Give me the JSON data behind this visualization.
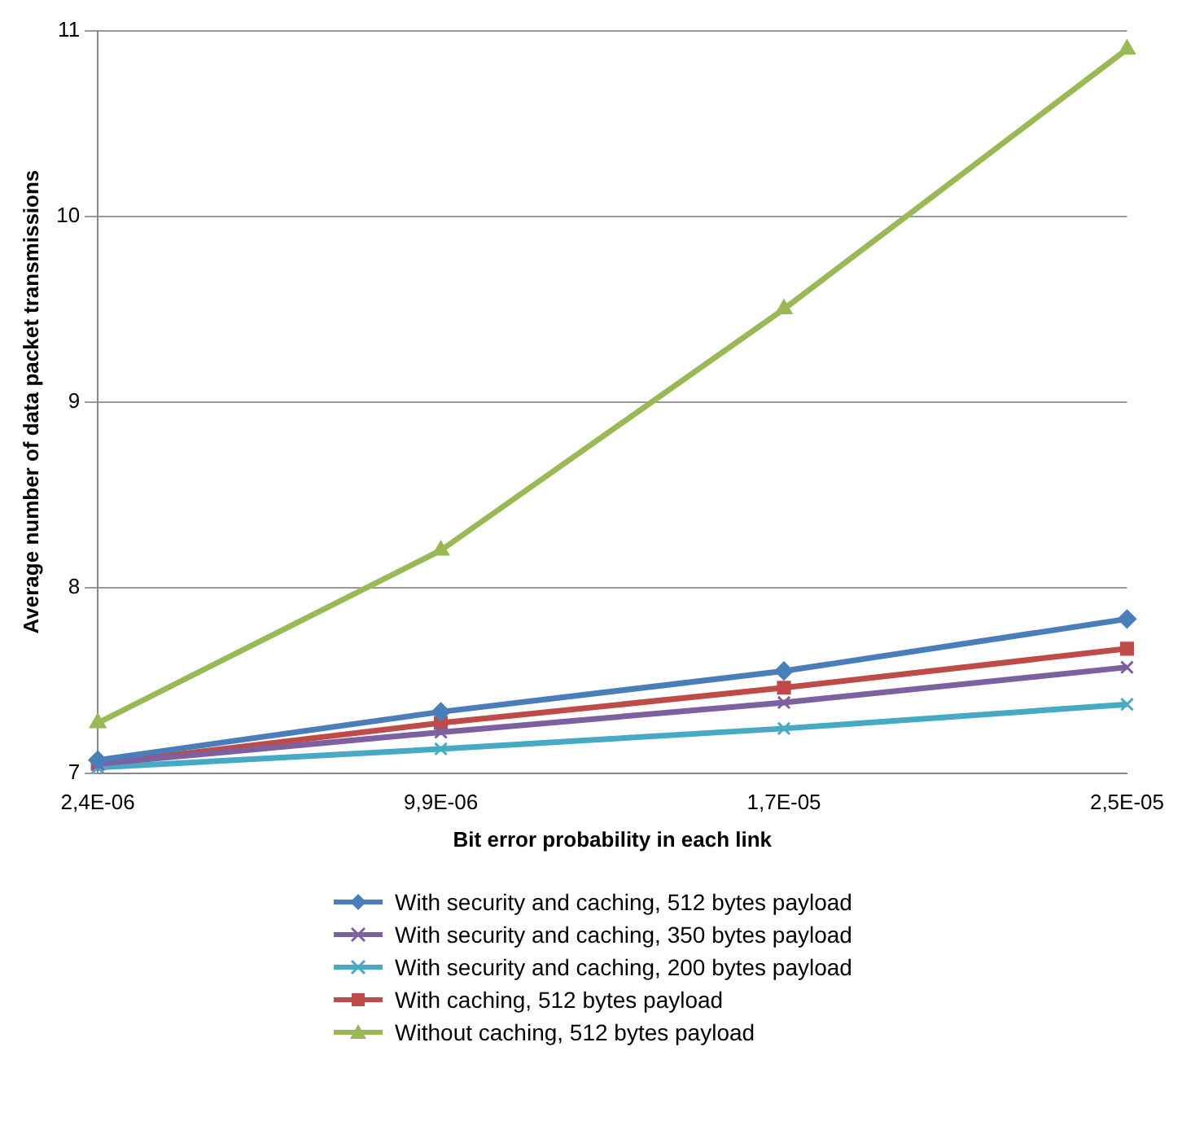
{
  "chart_data": {
    "type": "line",
    "xlabel": "Bit error probability in each link",
    "ylabel": "Average number of data packet transmissions",
    "categories": [
      "2,4E-06",
      "9,9E-06",
      "1,7E-05",
      "2,5E-05"
    ],
    "series": [
      {
        "name": "With security and caching, 512 bytes payload",
        "color": "#4a7ebb",
        "marker": "diamond",
        "values": [
          7.07,
          7.33,
          7.55,
          7.83
        ]
      },
      {
        "name": "With security and caching, 350 bytes payload",
        "color": "#7d60a0",
        "marker": "cross",
        "values": [
          7.05,
          7.22,
          7.38,
          7.57
        ]
      },
      {
        "name": "With security and caching, 200 bytes payload",
        "color": "#46aac5",
        "marker": "cross",
        "values": [
          7.03,
          7.13,
          7.24,
          7.37
        ]
      },
      {
        "name": "With caching, 512 bytes payload",
        "color": "#be4b48",
        "marker": "square",
        "values": [
          7.05,
          7.27,
          7.46,
          7.67
        ]
      },
      {
        "name": "Without caching, 512 bytes payload",
        "color": "#98b954",
        "marker": "triangle",
        "values": [
          7.27,
          8.2,
          9.5,
          10.9
        ]
      }
    ],
    "ylim": [
      7,
      11
    ],
    "yticks": [
      7,
      8,
      9,
      10,
      11
    ],
    "grid": "y",
    "legend": "bottom",
    "line_style": "solid"
  }
}
